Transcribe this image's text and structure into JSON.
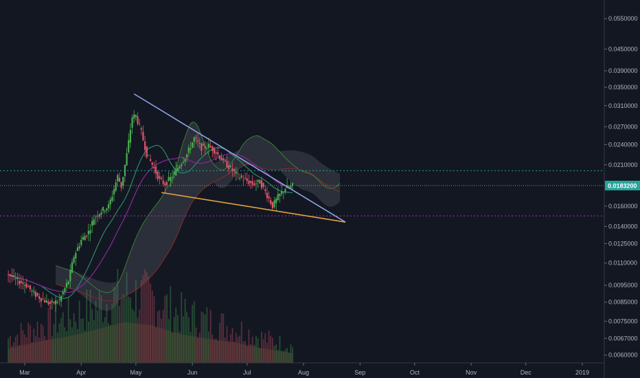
{
  "colors": {
    "background": "#131722",
    "candle_up": "#4caf50",
    "candle_down": "#e0566b",
    "resistance_line": "#8fa3e6",
    "support_line": "#e6a23c",
    "cloud_bull": "#3d7d3a",
    "cloud_bear": "#8a2a2a",
    "ma_green": "#2a8a6a",
    "ma_purple": "#8a2a9a",
    "current_price": "#26a69a",
    "level_teal": "#26a69a",
    "level_magenta": "#b030c0"
  },
  "chart_data": {
    "type": "candlestick",
    "y_scale": "log",
    "ylim": [
      0.0055,
      0.06
    ],
    "y_ticks": [
      "0.0550000",
      "0.0450000",
      "0.0390000",
      "0.0350000",
      "0.0310000",
      "0.0270000",
      "0.0240000",
      "0.0210000",
      "0.0160000",
      "0.0140000",
      "0.0125000",
      "0.0110000",
      "0.0095000",
      "0.0085000",
      "0.0075000",
      "0.0067000",
      "0.0060000"
    ],
    "y_tick_values": [
      0.055,
      0.045,
      0.039,
      0.035,
      0.031,
      0.027,
      0.024,
      0.021,
      0.016,
      0.014,
      0.0125,
      0.011,
      0.0095,
      0.0085,
      0.0075,
      0.0067,
      0.006
    ],
    "x_ticks": [
      "Mar",
      "Apr",
      "May",
      "Jun",
      "Jul",
      "Aug",
      "Sep",
      "Oct",
      "Nov",
      "Dec",
      "2019"
    ],
    "x_tick_dates": [
      "2018-03-01",
      "2018-04-01",
      "2018-05-01",
      "2018-06-01",
      "2018-07-01",
      "2018-08-01",
      "2018-09-01",
      "2018-10-01",
      "2018-11-01",
      "2018-12-01",
      "2019-01-01"
    ],
    "current_price": {
      "label": "0.0183200",
      "value": 0.01832
    },
    "horizontal_levels": [
      {
        "value": 0.0202,
        "color_key": "level_teal"
      },
      {
        "value": 0.015,
        "color_key": "level_magenta"
      }
    ],
    "trendlines": [
      {
        "name": "resistance",
        "from": {
          "date": "2018-04-30",
          "value": 0.0335
        },
        "to": {
          "date": "2018-08-24",
          "value": 0.0144
        }
      },
      {
        "name": "support",
        "from": {
          "date": "2018-05-15",
          "value": 0.0175
        },
        "to": {
          "date": "2018-08-24",
          "value": 0.0144
        }
      }
    ],
    "price_points": [
      [
        "2018-02-20",
        0.0102
      ],
      [
        "2018-02-25",
        0.0098
      ],
      [
        "2018-03-02",
        0.0095
      ],
      [
        "2018-03-06",
        0.009
      ],
      [
        "2018-03-10",
        0.0087
      ],
      [
        "2018-03-15",
        0.0084
      ],
      [
        "2018-03-20",
        0.0086
      ],
      [
        "2018-03-25",
        0.0098
      ],
      [
        "2018-03-28",
        0.0115
      ],
      [
        "2018-04-01",
        0.0128
      ],
      [
        "2018-04-05",
        0.0135
      ],
      [
        "2018-04-08",
        0.0148
      ],
      [
        "2018-04-12",
        0.0155
      ],
      [
        "2018-04-16",
        0.016
      ],
      [
        "2018-04-18",
        0.0172
      ],
      [
        "2018-04-21",
        0.0195
      ],
      [
        "2018-04-23",
        0.0182
      ],
      [
        "2018-04-26",
        0.0225
      ],
      [
        "2018-04-29",
        0.0288
      ],
      [
        "2018-05-01",
        0.029
      ],
      [
        "2018-05-04",
        0.026
      ],
      [
        "2018-05-07",
        0.0225
      ],
      [
        "2018-05-10",
        0.021
      ],
      [
        "2018-05-14",
        0.019
      ],
      [
        "2018-05-17",
        0.0185
      ],
      [
        "2018-05-21",
        0.0195
      ],
      [
        "2018-05-25",
        0.021
      ],
      [
        "2018-05-29",
        0.0225
      ],
      [
        "2018-06-02",
        0.025
      ],
      [
        "2018-06-06",
        0.0235
      ],
      [
        "2018-06-10",
        0.0238
      ],
      [
        "2018-06-14",
        0.0228
      ],
      [
        "2018-06-18",
        0.0215
      ],
      [
        "2018-06-22",
        0.0205
      ],
      [
        "2018-06-26",
        0.0195
      ],
      [
        "2018-06-30",
        0.019
      ],
      [
        "2018-07-04",
        0.0185
      ],
      [
        "2018-07-08",
        0.0188
      ],
      [
        "2018-07-12",
        0.0172
      ],
      [
        "2018-07-15",
        0.016
      ],
      [
        "2018-07-18",
        0.017
      ],
      [
        "2018-07-22",
        0.018
      ],
      [
        "2018-07-26",
        0.0183
      ]
    ],
    "volume_profile": [
      [
        "2018-02-20",
        0.3
      ],
      [
        "2018-03-10",
        0.45
      ],
      [
        "2018-03-25",
        0.55
      ],
      [
        "2018-04-10",
        0.7
      ],
      [
        "2018-04-25",
        0.85
      ],
      [
        "2018-05-10",
        0.78
      ],
      [
        "2018-05-25",
        0.6
      ],
      [
        "2018-06-10",
        0.5
      ],
      [
        "2018-06-25",
        0.42
      ],
      [
        "2018-07-10",
        0.3
      ],
      [
        "2018-07-26",
        0.2
      ]
    ]
  }
}
